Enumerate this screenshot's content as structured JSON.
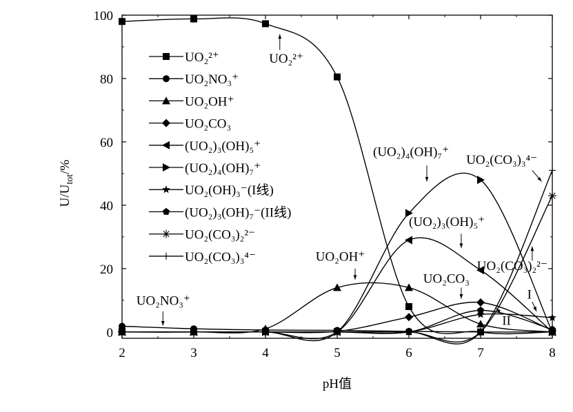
{
  "chart_data": {
    "type": "line",
    "xlabel": "pH值",
    "ylabel": "U/U_tot/%",
    "xlim": [
      2,
      8
    ],
    "ylim": [
      -2,
      100
    ],
    "xticks": [
      "2",
      "3",
      "4",
      "5",
      "6",
      "7",
      "8"
    ],
    "yticks": [
      "0",
      "20",
      "40",
      "60",
      "80",
      "100"
    ],
    "grid": false,
    "legend_position": "top-left",
    "series": [
      {
        "name": "UO2^2+",
        "label": "UO₂²⁺",
        "marker": "square",
        "points": [
          [
            2,
            98
          ],
          [
            3,
            98.8
          ],
          [
            4,
            97.3
          ],
          [
            5,
            80.5
          ],
          [
            6,
            8
          ],
          [
            7,
            0
          ],
          [
            8,
            0
          ]
        ]
      },
      {
        "name": "UO2NO3^+",
        "label": "UO₂NO₃⁺",
        "marker": "circle",
        "points": [
          [
            2,
            1.8
          ],
          [
            3,
            1
          ],
          [
            4,
            0.6
          ],
          [
            5,
            0.5
          ],
          [
            6,
            0.2
          ],
          [
            7,
            0
          ],
          [
            8,
            0
          ]
        ]
      },
      {
        "name": "UO2OH^+",
        "label": "UO₂OH⁺",
        "marker": "triangle",
        "points": [
          [
            2,
            0
          ],
          [
            3,
            0
          ],
          [
            4,
            1
          ],
          [
            5,
            14
          ],
          [
            6,
            14
          ],
          [
            7,
            2.5
          ],
          [
            8,
            0
          ]
        ]
      },
      {
        "name": "UO2CO3",
        "label": "UO₂CO₃",
        "marker": "diamond",
        "points": [
          [
            2,
            0
          ],
          [
            3,
            0
          ],
          [
            4,
            0
          ],
          [
            5,
            0.2
          ],
          [
            6,
            4.7
          ],
          [
            7,
            9.3
          ],
          [
            8,
            0.5
          ]
        ]
      },
      {
        "name": "(UO2)3(OH)5^+",
        "label": "(UO₂)₃(OH)₅⁺",
        "marker": "tri-left",
        "points": [
          [
            2,
            0
          ],
          [
            3,
            0
          ],
          [
            4,
            0
          ],
          [
            5,
            0
          ],
          [
            6,
            29
          ],
          [
            7,
            19.5
          ],
          [
            8,
            0
          ]
        ]
      },
      {
        "name": "(UO2)4(OH)7^+",
        "label": "(UO₂)₄(OH)₇⁺",
        "marker": "tri-right",
        "points": [
          [
            2,
            0
          ],
          [
            3,
            0
          ],
          [
            4,
            0
          ],
          [
            5,
            0
          ],
          [
            6,
            37.5
          ],
          [
            7,
            48
          ],
          [
            8,
            0
          ]
        ]
      },
      {
        "name": "UO2(OH)3^- (I线)",
        "label": "UO₂(OH)₃⁻(I线)",
        "marker": "star",
        "points": [
          [
            2,
            0
          ],
          [
            3,
            0
          ],
          [
            4,
            0
          ],
          [
            5,
            0
          ],
          [
            6,
            0
          ],
          [
            7,
            5.5
          ],
          [
            8,
            4.5
          ]
        ]
      },
      {
        "name": "(UO2)3(OH)7^- (II线)",
        "label": "(UO₂)₃(OH)₇⁻(II线)",
        "marker": "pentagon",
        "points": [
          [
            2,
            0
          ],
          [
            3,
            0
          ],
          [
            4,
            0
          ],
          [
            5,
            0
          ],
          [
            6,
            0
          ],
          [
            7,
            6.8
          ],
          [
            8,
            0.8
          ]
        ]
      },
      {
        "name": "UO2(CO3)2^2-",
        "label": "UO₂(CO₃)₂²⁻",
        "marker": "asterisk",
        "points": [
          [
            2,
            0
          ],
          [
            3,
            0
          ],
          [
            4,
            0
          ],
          [
            5,
            0
          ],
          [
            6,
            0
          ],
          [
            7,
            0
          ],
          [
            8,
            43
          ]
        ]
      },
      {
        "name": "UO2(CO3)3^4-",
        "label": "UO₂(CO₃)₃⁴⁻",
        "marker": "plus",
        "points": [
          [
            2,
            0
          ],
          [
            3,
            0
          ],
          [
            4,
            0
          ],
          [
            5,
            0
          ],
          [
            6,
            0
          ],
          [
            7,
            0
          ],
          [
            8,
            51
          ]
        ]
      }
    ],
    "annotations": [
      {
        "text": "UO₂²⁺",
        "x": 4.05,
        "y": 85
      },
      {
        "text": "UO₂NO₃⁺",
        "x": 2.2,
        "y": 8.5
      },
      {
        "text": "UO₂OH⁺",
        "x": 4.7,
        "y": 22.5
      },
      {
        "text": "(UO₂)₄(OH)₇⁺",
        "x": 5.5,
        "y": 55.5
      },
      {
        "text": "UO₂(CO₃)₃⁴⁻",
        "x": 6.8,
        "y": 53
      },
      {
        "text": "(UO₂)₃(OH)₅⁺",
        "x": 6.0,
        "y": 33.5
      },
      {
        "text": "UO₂(CO₃)₂²⁻",
        "x": 6.95,
        "y": 19.5
      },
      {
        "text": "UO₂CO₃",
        "x": 6.2,
        "y": 15.5
      },
      {
        "text": "I",
        "x": 7.65,
        "y": 10.5
      },
      {
        "text": "II",
        "x": 7.3,
        "y": 2.2
      }
    ]
  }
}
